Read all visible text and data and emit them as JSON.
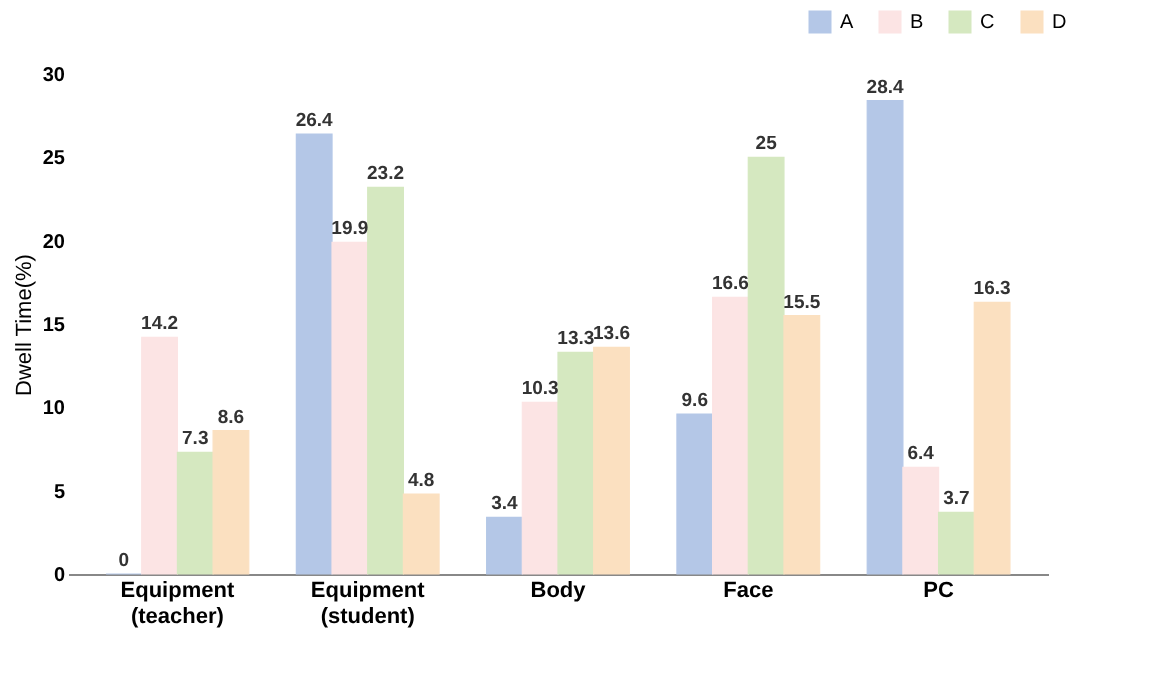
{
  "chart_data": {
    "type": "bar",
    "ylabel": "Dwell Time(%)",
    "categories": [
      "Equipment (teacher)",
      "Equipment (student)",
      "Body",
      "Face",
      "PC"
    ],
    "series": [
      {
        "name": "A",
        "color": "#b4c7e7",
        "values": [
          0,
          26.4,
          3.4,
          9.6,
          28.4
        ]
      },
      {
        "name": "B",
        "color": "#fce4e4",
        "values": [
          14.2,
          19.9,
          10.3,
          16.6,
          6.4
        ]
      },
      {
        "name": "C",
        "color": "#d5e8c0",
        "values": [
          7.3,
          23.2,
          13.3,
          25,
          3.7
        ]
      },
      {
        "name": "D",
        "color": "#fbe0c0",
        "values": [
          8.6,
          4.8,
          13.6,
          15.5,
          16.3
        ]
      }
    ],
    "ylim": [
      0,
      30
    ],
    "yticks": [
      0,
      5,
      10,
      15,
      20,
      25,
      30
    ],
    "grid": false,
    "legend": "top right",
    "data_labels": true
  }
}
